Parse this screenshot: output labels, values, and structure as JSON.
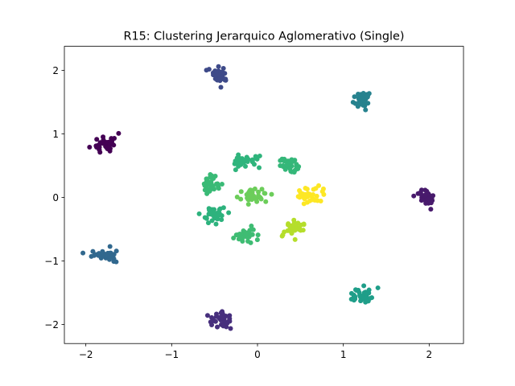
{
  "chart_data": {
    "type": "scatter",
    "title": "R15: Clustering Jerarquico Aglomerativo (Single)",
    "xlabel": "",
    "ylabel": "",
    "xlim": [
      -2.25,
      2.4
    ],
    "ylim": [
      -2.3,
      2.38
    ],
    "xticks": [
      -2,
      -1,
      0,
      1,
      2
    ],
    "yticks": [
      -2,
      -1,
      0,
      1,
      2
    ],
    "xtick_labels": [
      "−2",
      "−1",
      "0",
      "1",
      "2"
    ],
    "ytick_labels": [
      "−2",
      "−1",
      "0",
      "1",
      "2"
    ],
    "grid": false,
    "legend": "none",
    "colormap": "viridis",
    "clusters": [
      {
        "label": 0,
        "color": "#440154",
        "center": [
          -1.78,
          0.85
        ],
        "spread": [
          0.07,
          0.08
        ],
        "n": 36,
        "seed": 11
      },
      {
        "label": 1,
        "color": "#481a6c",
        "center": [
          1.98,
          0.0
        ],
        "spread": [
          0.06,
          0.06
        ],
        "n": 34,
        "seed": 12
      },
      {
        "label": 2,
        "color": "#472f7d",
        "center": [
          -0.42,
          -1.92
        ],
        "spread": [
          0.07,
          0.06
        ],
        "n": 36,
        "seed": 13
      },
      {
        "label": 3,
        "color": "#3e4a89",
        "center": [
          -0.42,
          1.93
        ],
        "spread": [
          0.06,
          0.06
        ],
        "n": 36,
        "seed": 14
      },
      {
        "label": 4,
        "color": "#31688e",
        "center": [
          -1.75,
          -0.9
        ],
        "spread": [
          0.09,
          0.05
        ],
        "n": 36,
        "seed": 15
      },
      {
        "label": 5,
        "color": "#26828e",
        "center": [
          1.22,
          1.53
        ],
        "spread": [
          0.05,
          0.06
        ],
        "n": 36,
        "seed": 16
      },
      {
        "label": 6,
        "color": "#1f9e89",
        "center": [
          1.22,
          -1.55
        ],
        "spread": [
          0.07,
          0.06
        ],
        "n": 36,
        "seed": 17
      },
      {
        "label": 7,
        "color": "#2db27d",
        "center": [
          -0.52,
          -0.28
        ],
        "spread": [
          0.07,
          0.07
        ],
        "n": 34,
        "seed": 18
      },
      {
        "label": 8,
        "color": "#3aba76",
        "center": [
          -0.55,
          0.25
        ],
        "spread": [
          0.05,
          0.08
        ],
        "n": 32,
        "seed": 19
      },
      {
        "label": 9,
        "color": "#2fb47c",
        "center": [
          -0.15,
          0.58
        ],
        "spread": [
          0.08,
          0.06
        ],
        "n": 34,
        "seed": 20
      },
      {
        "label": 10,
        "color": "#35b779",
        "center": [
          0.38,
          0.5
        ],
        "spread": [
          0.07,
          0.06
        ],
        "n": 34,
        "seed": 21
      },
      {
        "label": 11,
        "color": "#3fbc73",
        "center": [
          -0.15,
          -0.6
        ],
        "spread": [
          0.07,
          0.06
        ],
        "n": 34,
        "seed": 22
      },
      {
        "label": 12,
        "color": "#6ccd5a",
        "center": [
          -0.02,
          0.02
        ],
        "spread": [
          0.08,
          0.05
        ],
        "n": 34,
        "seed": 23
      },
      {
        "label": 13,
        "color": "#b5de2b",
        "center": [
          0.4,
          -0.5
        ],
        "spread": [
          0.07,
          0.07
        ],
        "n": 34,
        "seed": 24
      },
      {
        "label": 14,
        "color": "#fde725",
        "center": [
          0.62,
          0.02
        ],
        "spread": [
          0.08,
          0.06
        ],
        "n": 34,
        "seed": 25
      }
    ]
  }
}
